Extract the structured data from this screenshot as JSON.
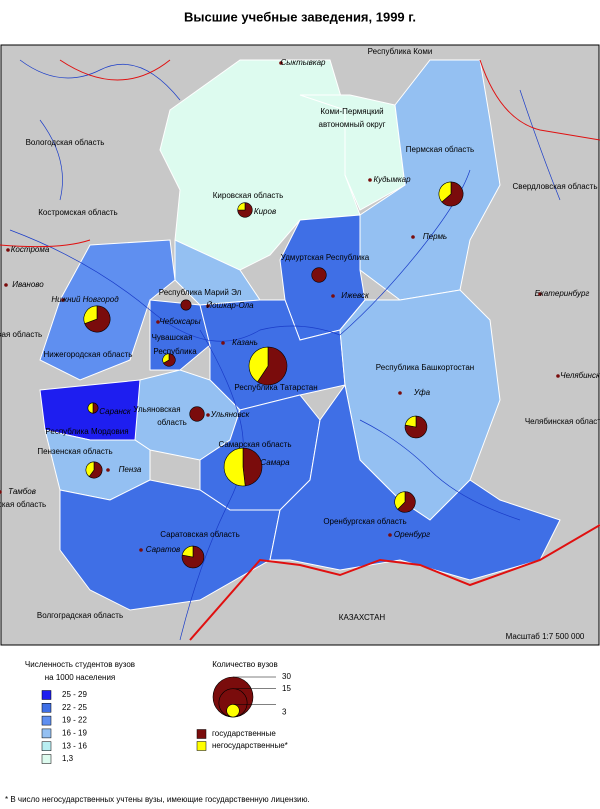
{
  "title": "Высшие учебные заведения, 1999 г.",
  "map": {
    "regions": [
      "Республика Коми",
      "Вологодская область",
      "Коми-Пермяцкий",
      "автономный округ",
      "Пермская область",
      "Свердловская область",
      "Кировская область",
      "Костромская область",
      "Удмуртская Республика",
      "Республика Марий Эл",
      "Нижегородская область",
      "Чувашская",
      "Республика",
      "Республика Татарстан",
      "Республика Башкортостан",
      "Ульяновская",
      "область",
      "Самарская область",
      "Республика Мордовия",
      "Пензенская область",
      "Саратовская область",
      "Оренбургская область",
      "Челябинская область",
      "Волгоградская область",
      "КАЗАХСТАН",
      "ская область",
      "ская область"
    ],
    "cities": [
      "Сыктывкар",
      "Кудымкар",
      "Пермь",
      "Екатеринбург",
      "Челябинск",
      "Киров",
      "Ижевск",
      "Йошкар-Ола",
      "Чебоксары",
      "Казань",
      "Нижний Новгород",
      "Саранск",
      "Ульяновск",
      "Самара",
      "Пенза",
      "Уфа",
      "Оренбург",
      "Саратов",
      "Кострома",
      "Иваново",
      "Тамбов"
    ],
    "scale": "Масштаб 1:7 500 000"
  },
  "pies": [
    {
      "state": 9,
      "nonstate": 4
    },
    {
      "state": 3,
      "nonstate": 1
    },
    {
      "state": 7,
      "nonstate": 4
    },
    {
      "state": 4,
      "nonstate": 0
    },
    {
      "state": 2,
      "nonstate": 0
    },
    {
      "state": 2,
      "nonstate": 1
    },
    {
      "state": 16,
      "nonstate": 11
    },
    {
      "state": 1,
      "nonstate": 1
    },
    {
      "state": 4,
      "nonstate": 0
    },
    {
      "state": 13,
      "nonstate": 14
    },
    {
      "state": 3,
      "nonstate": 2
    },
    {
      "state": 7,
      "nonstate": 2
    },
    {
      "state": 5,
      "nonstate": 3
    },
    {
      "state": 7,
      "nonstate": 2
    }
  ],
  "legend": {
    "density": {
      "title": [
        "Численность студентов вузов",
        "на 1000 населения"
      ],
      "classes": [
        {
          "label": "25 - 29",
          "color": "#1e1ef0"
        },
        {
          "label": "22 - 25",
          "color": "#3f6fe6"
        },
        {
          "label": "19 - 22",
          "color": "#5f8ff0"
        },
        {
          "label": "16 - 19",
          "color": "#94c0f2"
        },
        {
          "label": "13 - 16",
          "color": "#b8eef2"
        },
        {
          "label": "1,3",
          "color": "#ddfbef"
        }
      ]
    },
    "sizes": {
      "title": "Количество вузов",
      "values": [
        30,
        15,
        3
      ]
    },
    "kinds": [
      {
        "label": "государственные",
        "color": "#7a0c0c"
      },
      {
        "label": "негосударственные*",
        "color": "#ffff00"
      }
    ]
  },
  "footnote": "* В число негосударственных учтены вузы, имеющие государственную лицензию."
}
